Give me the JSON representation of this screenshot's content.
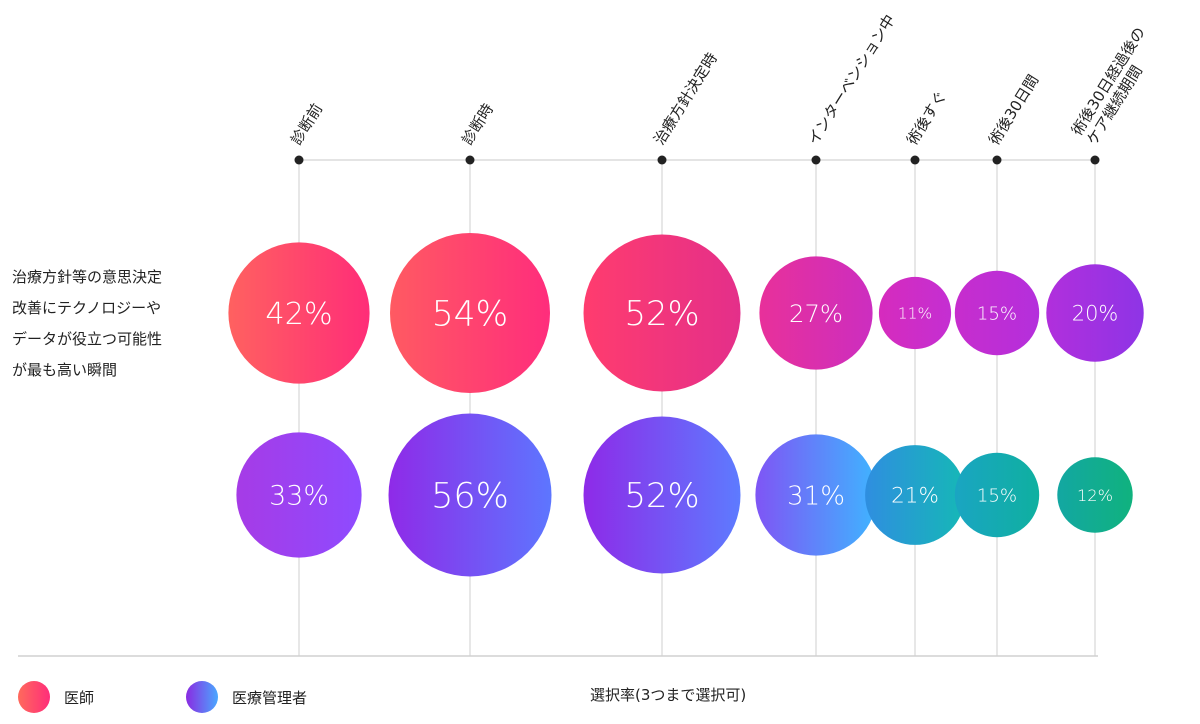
{
  "row_label_lines": [
    "治療方針等の意思決定",
    "改善にテクノロジーや",
    "データが役立つ可能性",
    "が最も高い瞬間"
  ],
  "legend": [
    {
      "label": "医師",
      "color_from": "#ff6a5c",
      "color_to": "#ff2d7a"
    },
    {
      "label": "医療管理者",
      "color_from": "#8a2be2",
      "color_to": "#4aa8ff"
    }
  ],
  "footnote": "選択率(3つまで選択可)",
  "chart_data": {
    "type": "bubble",
    "categories": [
      "診断前",
      "診断時",
      "治療方針決定時",
      "インターベンション中",
      "術後すぐ",
      "術後30日間",
      "術後30日経過後の|ケア継続期間"
    ],
    "series": [
      {
        "name": "医師",
        "values": [
          42,
          54,
          52,
          27,
          11,
          15,
          20
        ],
        "labels": [
          "42%",
          "54%",
          "52%",
          "27%",
          "11%",
          "15%",
          "20%"
        ]
      },
      {
        "name": "医療管理者",
        "values": [
          33,
          56,
          52,
          31,
          21,
          15,
          12
        ],
        "labels": [
          "33%",
          "56%",
          "52%",
          "31%",
          "21%",
          "15%",
          "12%"
        ]
      }
    ],
    "value_unit": "%",
    "legend_position": "bottom-left"
  }
}
